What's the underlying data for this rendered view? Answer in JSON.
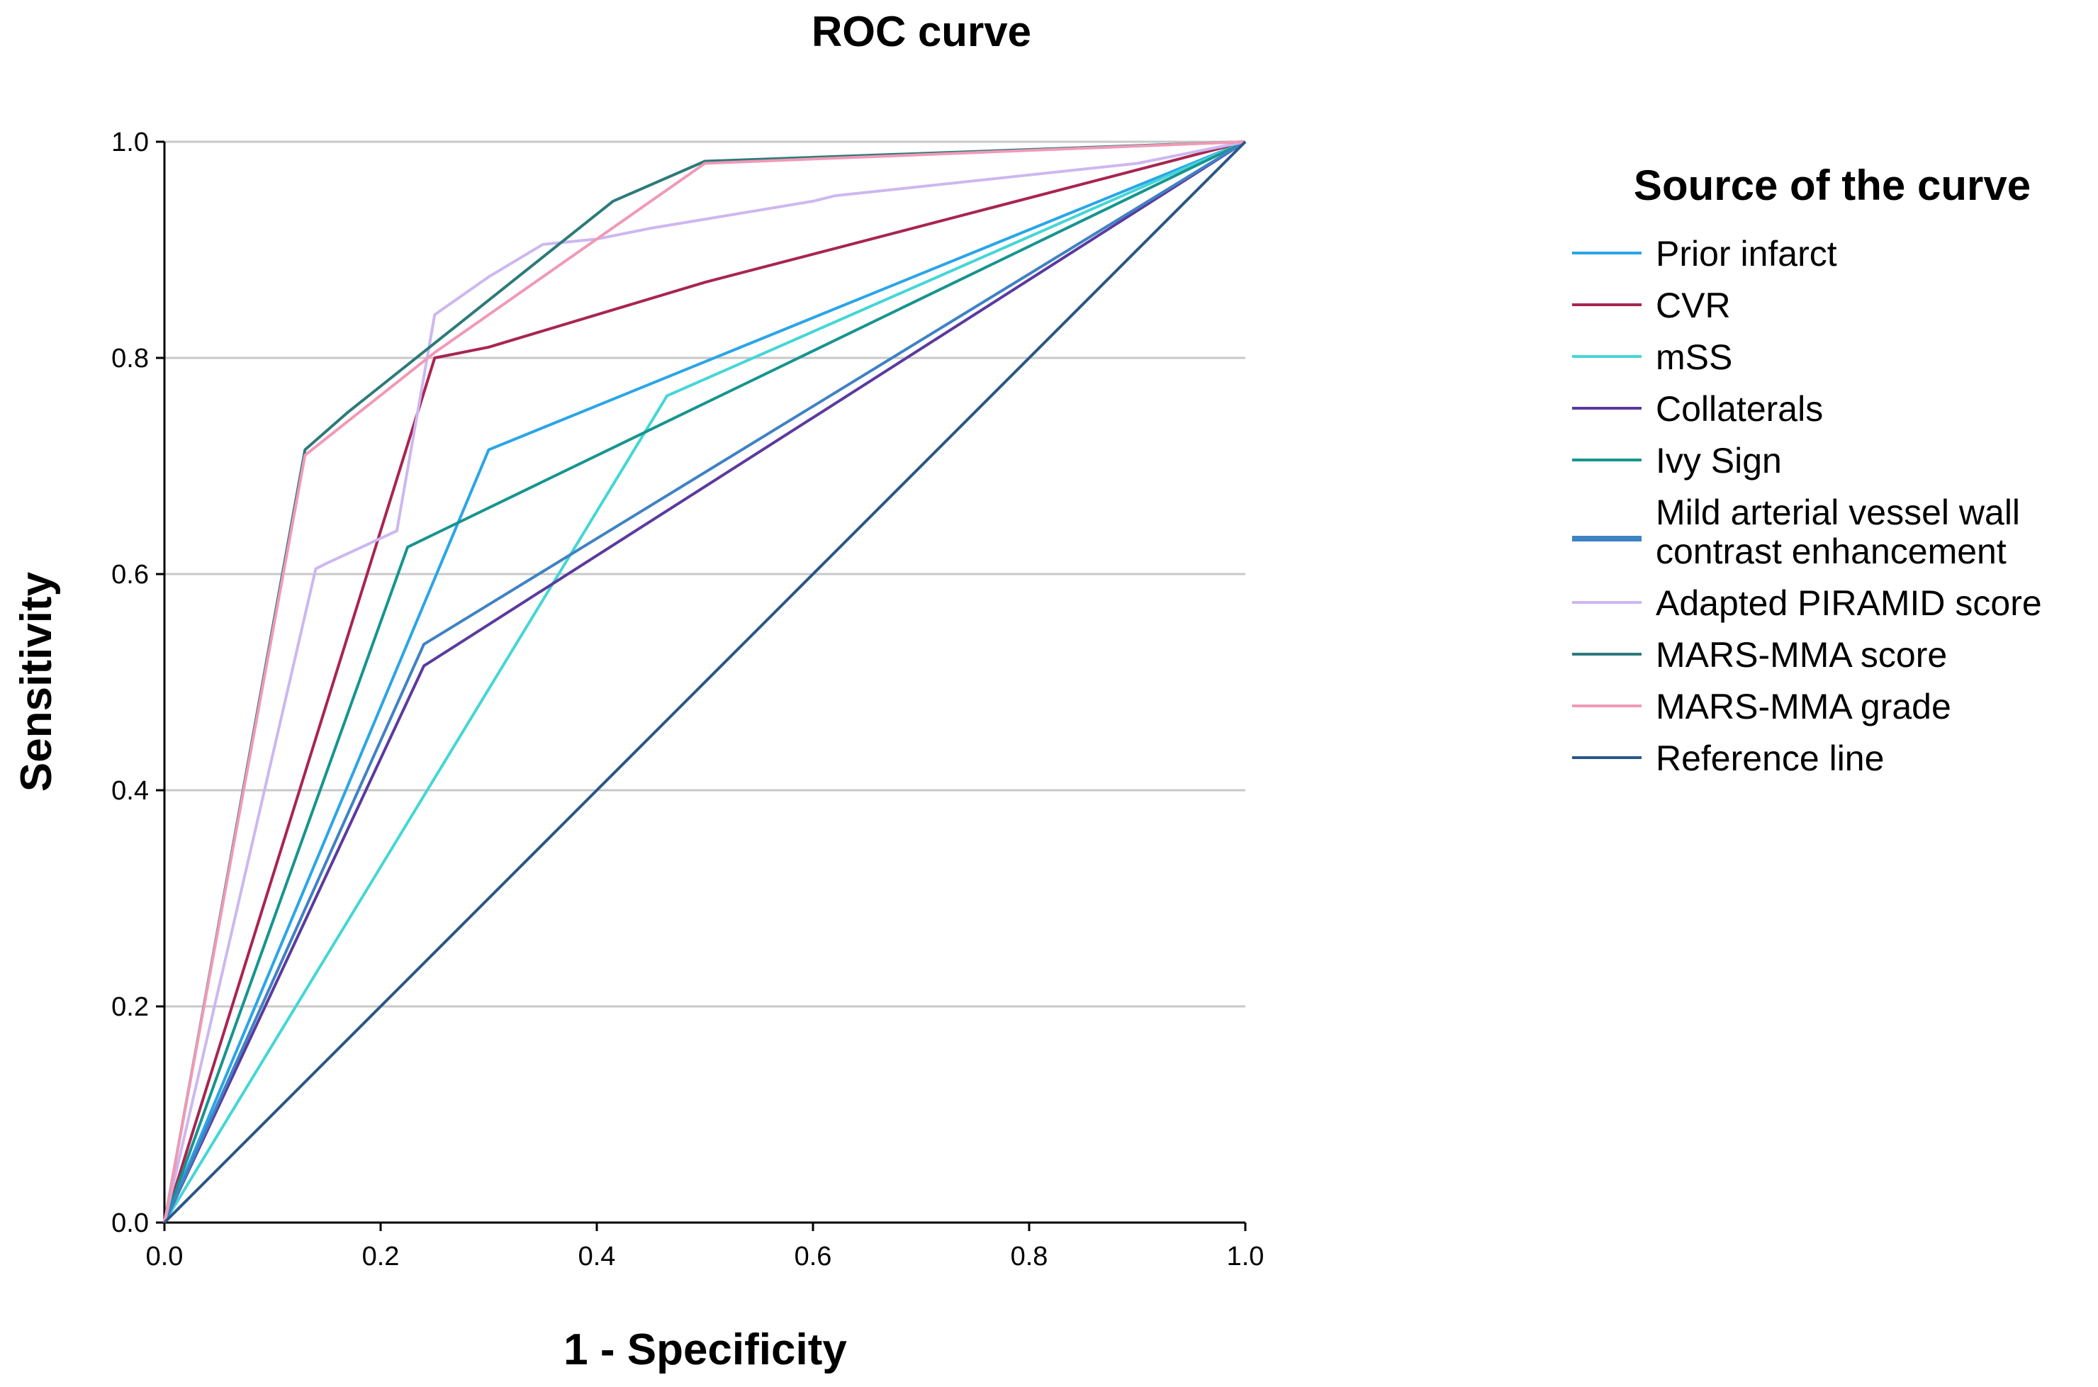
{
  "chart_data": {
    "type": "line",
    "title": "ROC curve",
    "xlabel": "1 - Specificity",
    "ylabel": "Sensitivity",
    "xlim": [
      0,
      1
    ],
    "ylim": [
      0,
      1
    ],
    "x_ticks": [
      "0.0",
      "0.2",
      "0.4",
      "0.6",
      "0.8",
      "1.0"
    ],
    "y_ticks": [
      "0.0",
      "0.2",
      "0.4",
      "0.6",
      "0.8",
      "1.0"
    ],
    "grid": "horizontal",
    "legend_title": "Source of the curve",
    "legend_position": "right",
    "series": [
      {
        "name": "Prior infarct",
        "color": "#2aa5e8",
        "points": [
          [
            0,
            0
          ],
          [
            0.3,
            0.715
          ],
          [
            1,
            1
          ]
        ]
      },
      {
        "name": "CVR",
        "color": "#a8254f",
        "points": [
          [
            0,
            0
          ],
          [
            0.25,
            0.8
          ],
          [
            0.3,
            0.81
          ],
          [
            0.5,
            0.87
          ],
          [
            1,
            1
          ]
        ]
      },
      {
        "name": "mSS",
        "color": "#45d6d6",
        "points": [
          [
            0,
            0
          ],
          [
            0.465,
            0.765
          ],
          [
            1,
            1
          ]
        ]
      },
      {
        "name": "Collaterals",
        "color": "#5b3a9e",
        "points": [
          [
            0,
            0
          ],
          [
            0.24,
            0.515
          ],
          [
            1,
            1
          ]
        ]
      },
      {
        "name": "Ivy Sign",
        "color": "#17948f",
        "points": [
          [
            0,
            0
          ],
          [
            0.225,
            0.625
          ],
          [
            1,
            1
          ]
        ]
      },
      {
        "name": "Mild arterial vessel wall contrast enhancement",
        "color": "#3f82c4",
        "points": [
          [
            0,
            0
          ],
          [
            0.24,
            0.535
          ],
          [
            1,
            1
          ]
        ]
      },
      {
        "name": "Adapted PIRAMID score",
        "color": "#cdb7f0",
        "points": [
          [
            0,
            0
          ],
          [
            0.14,
            0.605
          ],
          [
            0.15,
            0.61
          ],
          [
            0.215,
            0.64
          ],
          [
            0.25,
            0.84
          ],
          [
            0.3,
            0.875
          ],
          [
            0.35,
            0.905
          ],
          [
            0.4,
            0.91
          ],
          [
            0.45,
            0.92
          ],
          [
            0.6,
            0.945
          ],
          [
            0.62,
            0.95
          ],
          [
            0.9,
            0.98
          ],
          [
            1,
            1
          ]
        ]
      },
      {
        "name": "MARS-MMA score",
        "color": "#2c7a7a",
        "points": [
          [
            0,
            0
          ],
          [
            0.13,
            0.715
          ],
          [
            0.17,
            0.75
          ],
          [
            0.415,
            0.945
          ],
          [
            0.5,
            0.982
          ],
          [
            1,
            1
          ]
        ]
      },
      {
        "name": "MARS-MMA grade",
        "color": "#f199b6",
        "points": [
          [
            0,
            0
          ],
          [
            0.13,
            0.71
          ],
          [
            0.25,
            0.805
          ],
          [
            0.5,
            0.98
          ],
          [
            1,
            1
          ]
        ]
      },
      {
        "name": "Reference line",
        "color": "#2b5787",
        "points": [
          [
            0,
            0
          ],
          [
            1,
            1
          ]
        ]
      }
    ]
  }
}
